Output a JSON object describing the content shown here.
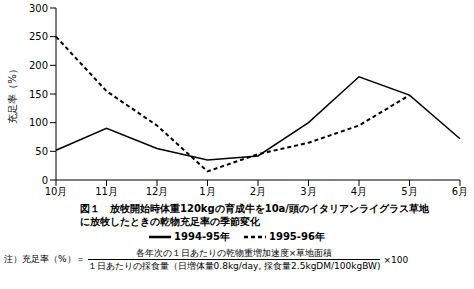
{
  "chart_data": {
    "type": "line",
    "title": "図１　放牧開始時体重120kgの育成牛を10a/頭のイタリアンライグラス草地に放牧したときの乾物充足率の季節変化",
    "y_label": "充足率（%）",
    "categories": [
      "10月",
      "11月",
      "12月",
      "1月",
      "2月",
      "3月",
      "4月",
      "5月",
      "6月"
    ],
    "series": [
      {
        "name": "1994-95年",
        "color": "#000000",
        "line_style": "solid",
        "values": [
          52,
          90,
          55,
          35,
          42,
          100,
          180,
          148,
          72
        ]
      },
      {
        "name": "1995-96年",
        "color": "#000000",
        "line_style": "dashed",
        "values": [
          250,
          155,
          95,
          15,
          45,
          65,
          95,
          148,
          null
        ]
      }
    ],
    "ylim": [
      0,
      300
    ],
    "yticks": [
      0,
      50,
      100,
      150,
      200,
      250,
      300
    ],
    "grid": false,
    "legend": "bottom",
    "annotations": {
      "note_prefix": "注）充足率（%）＝",
      "numerator": "各年次の１日あたりの乾物重増加速度×草地面積",
      "denominator": "１日あたりの採食量（日増体量0.8kg/day, 採食量2.5kgDM/100kgBW)",
      "suffix": "×100"
    }
  }
}
